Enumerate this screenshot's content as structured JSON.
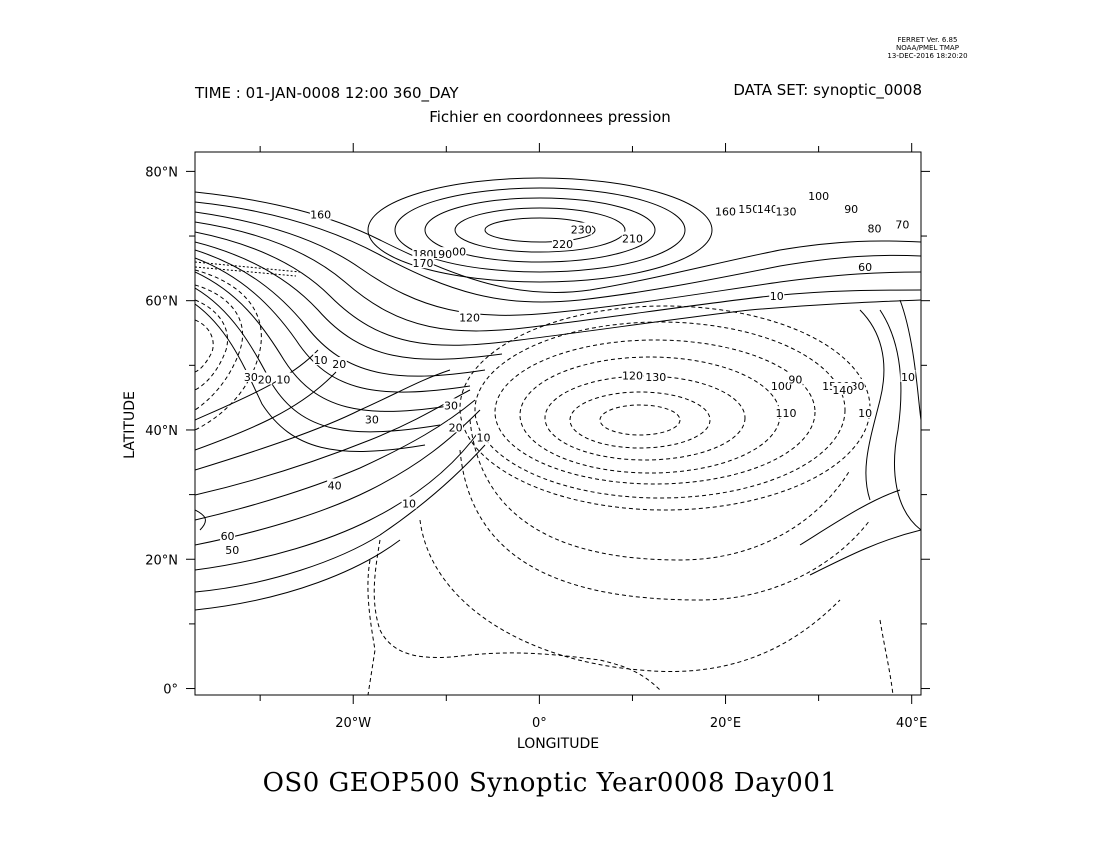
{
  "stamp": {
    "line1": "FERRET Ver. 6.85",
    "line2": "NOAA/PMEL TMAP",
    "line3": "13-DEC-2016 18:20:20"
  },
  "header": {
    "time": "TIME : 01-JAN-0008 12:00 360_DAY",
    "dataset": "DATA SET: synoptic_0008",
    "subtitle": "Fichier en coordonnees pression"
  },
  "footer": {
    "title": "OS0 GEOP500 Synoptic Year0008 Day001"
  },
  "chart_data": {
    "type": "contour",
    "xlabel": "LONGITUDE",
    "ylabel": "LATITUDE",
    "xlim": [
      -37,
      41
    ],
    "ylim": [
      -1,
      83
    ],
    "x_ticks": [
      {
        "value": -20,
        "label": "20°W"
      },
      {
        "value": 0,
        "label": "0°"
      },
      {
        "value": 20,
        "label": "20°E"
      },
      {
        "value": 40,
        "label": "40°E"
      }
    ],
    "y_ticks": [
      {
        "value": 0,
        "label": "0°"
      },
      {
        "value": 20,
        "label": "20°N"
      },
      {
        "value": 40,
        "label": "40°N"
      },
      {
        "value": 60,
        "label": "60°N"
      },
      {
        "value": 80,
        "label": "80°N"
      }
    ],
    "contour_labels": [
      {
        "text": "230",
        "lon": 4.5,
        "lat": 71
      },
      {
        "text": "220",
        "lon": 2.5,
        "lat": 68.8
      },
      {
        "text": "210",
        "lon": 10,
        "lat": 69.6
      },
      {
        "text": "200",
        "lon": -9,
        "lat": 67.6
      },
      {
        "text": "190",
        "lon": -10.5,
        "lat": 67.2
      },
      {
        "text": "180",
        "lon": -12.5,
        "lat": 67.2
      },
      {
        "text": "170",
        "lon": -12.5,
        "lat": 65.8
      },
      {
        "text": "160",
        "lon": -23.5,
        "lat": 73.3
      },
      {
        "text": "160",
        "lon": 20,
        "lat": 73.8
      },
      {
        "text": "150",
        "lon": 22.5,
        "lat": 74.2
      },
      {
        "text": "140",
        "lon": 24.5,
        "lat": 74.2
      },
      {
        "text": "130",
        "lon": 26.5,
        "lat": 73.8
      },
      {
        "text": "100",
        "lon": 30,
        "lat": 76.2
      },
      {
        "text": "90",
        "lon": 33.5,
        "lat": 74.2
      },
      {
        "text": "80",
        "lon": 36,
        "lat": 71.2
      },
      {
        "text": "70",
        "lon": 39,
        "lat": 71.8
      },
      {
        "text": "60",
        "lon": 35,
        "lat": 65.2
      },
      {
        "text": "10",
        "lon": 25.5,
        "lat": 60.7
      },
      {
        "text": "120",
        "lon": -7.5,
        "lat": 57.4
      },
      {
        "text": "120",
        "lon": 10,
        "lat": 48.4
      },
      {
        "text": "130",
        "lon": 12.5,
        "lat": 48.2
      },
      {
        "text": "10",
        "lon": -23.5,
        "lat": 50.8
      },
      {
        "text": "20",
        "lon": -21.5,
        "lat": 50.2
      },
      {
        "text": "30",
        "lon": -31,
        "lat": 48.2
      },
      {
        "text": "20",
        "lon": -29.5,
        "lat": 47.8
      },
      {
        "text": "10",
        "lon": -27.5,
        "lat": 47.8
      },
      {
        "text": "30",
        "lon": -18,
        "lat": 41.6
      },
      {
        "text": "30",
        "lon": -9.5,
        "lat": 43.8
      },
      {
        "text": "20",
        "lon": -9,
        "lat": 40.4
      },
      {
        "text": "10",
        "lon": -6,
        "lat": 38.8
      },
      {
        "text": "40",
        "lon": -22,
        "lat": 31.4
      },
      {
        "text": "60",
        "lon": -33.5,
        "lat": 23.6
      },
      {
        "text": "50",
        "lon": -33,
        "lat": 21.4
      },
      {
        "text": "10",
        "lon": -14,
        "lat": 28.6
      },
      {
        "text": "100",
        "lon": 26,
        "lat": 46.8
      },
      {
        "text": "90",
        "lon": 27.5,
        "lat": 47.8
      },
      {
        "text": "150",
        "lon": 31.5,
        "lat": 46.8
      },
      {
        "text": "130",
        "lon": 33.8,
        "lat": 46.8
      },
      {
        "text": "140",
        "lon": 32.6,
        "lat": 46.2
      },
      {
        "text": "110",
        "lon": 26.5,
        "lat": 42.6
      },
      {
        "text": "10",
        "lon": 35,
        "lat": 42.6
      },
      {
        "text": "10",
        "lon": 39.6,
        "lat": 48.2
      }
    ]
  }
}
